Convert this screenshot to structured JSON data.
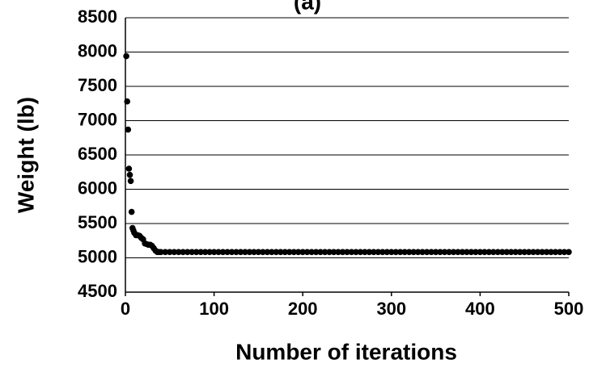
{
  "chart_data": {
    "type": "scatter",
    "title": "(a)",
    "x_label": "Number of iterations",
    "y_label": "Weight (lb)",
    "series": [
      {
        "color": "#000000",
        "x": [
          1,
          2,
          3,
          4,
          5,
          6,
          7,
          8,
          9,
          10,
          12,
          14,
          16,
          18,
          20,
          22,
          24,
          26,
          28,
          30,
          32,
          34,
          36,
          38,
          40,
          45,
          50,
          55,
          60,
          65,
          70,
          75,
          80,
          85,
          90,
          95,
          100,
          105,
          110,
          115,
          120,
          125,
          130,
          135,
          140,
          145,
          150,
          155,
          160,
          165,
          170,
          175,
          180,
          185,
          190,
          195,
          200,
          205,
          210,
          215,
          220,
          225,
          230,
          235,
          240,
          245,
          250,
          255,
          260,
          265,
          270,
          275,
          280,
          285,
          290,
          295,
          300,
          305,
          310,
          315,
          320,
          325,
          330,
          335,
          340,
          345,
          350,
          355,
          360,
          365,
          370,
          375,
          380,
          385,
          390,
          395,
          400,
          405,
          410,
          415,
          420,
          425,
          430,
          435,
          440,
          445,
          450,
          455,
          460,
          465,
          470,
          475,
          480,
          485,
          490,
          495,
          500
        ],
        "values": [
          7940,
          7280,
          6870,
          6300,
          6210,
          6120,
          5670,
          5435,
          5400,
          5365,
          5330,
          5330,
          5320,
          5290,
          5270,
          5210,
          5200,
          5190,
          5190,
          5175,
          5140,
          5105,
          5085,
          5085,
          5085,
          5085,
          5085,
          5085,
          5085,
          5085,
          5085,
          5085,
          5085,
          5085,
          5085,
          5085,
          5085,
          5085,
          5085,
          5085,
          5085,
          5085,
          5085,
          5085,
          5085,
          5085,
          5085,
          5085,
          5085,
          5085,
          5085,
          5085,
          5085,
          5085,
          5085,
          5085,
          5085,
          5085,
          5085,
          5085,
          5085,
          5085,
          5085,
          5085,
          5085,
          5085,
          5085,
          5085,
          5085,
          5085,
          5085,
          5085,
          5085,
          5085,
          5085,
          5085,
          5085,
          5085,
          5085,
          5085,
          5085,
          5085,
          5085,
          5085,
          5085,
          5085,
          5085,
          5085,
          5085,
          5085,
          5085,
          5085,
          5085,
          5085,
          5085,
          5085,
          5085,
          5085,
          5085,
          5085,
          5085,
          5085,
          5085,
          5085,
          5085,
          5085,
          5085,
          5085,
          5085,
          5085,
          5085,
          5085,
          5085,
          5085,
          5085,
          5085,
          5085
        ]
      }
    ],
    "xlim": [
      0,
      500
    ],
    "xticks": [
      0,
      100,
      200,
      300,
      400,
      500
    ],
    "ylim": [
      4500,
      8500
    ],
    "yticks": [
      4500,
      5000,
      5500,
      6000,
      6500,
      7000,
      7500,
      8000,
      8500
    ],
    "grid": true
  }
}
